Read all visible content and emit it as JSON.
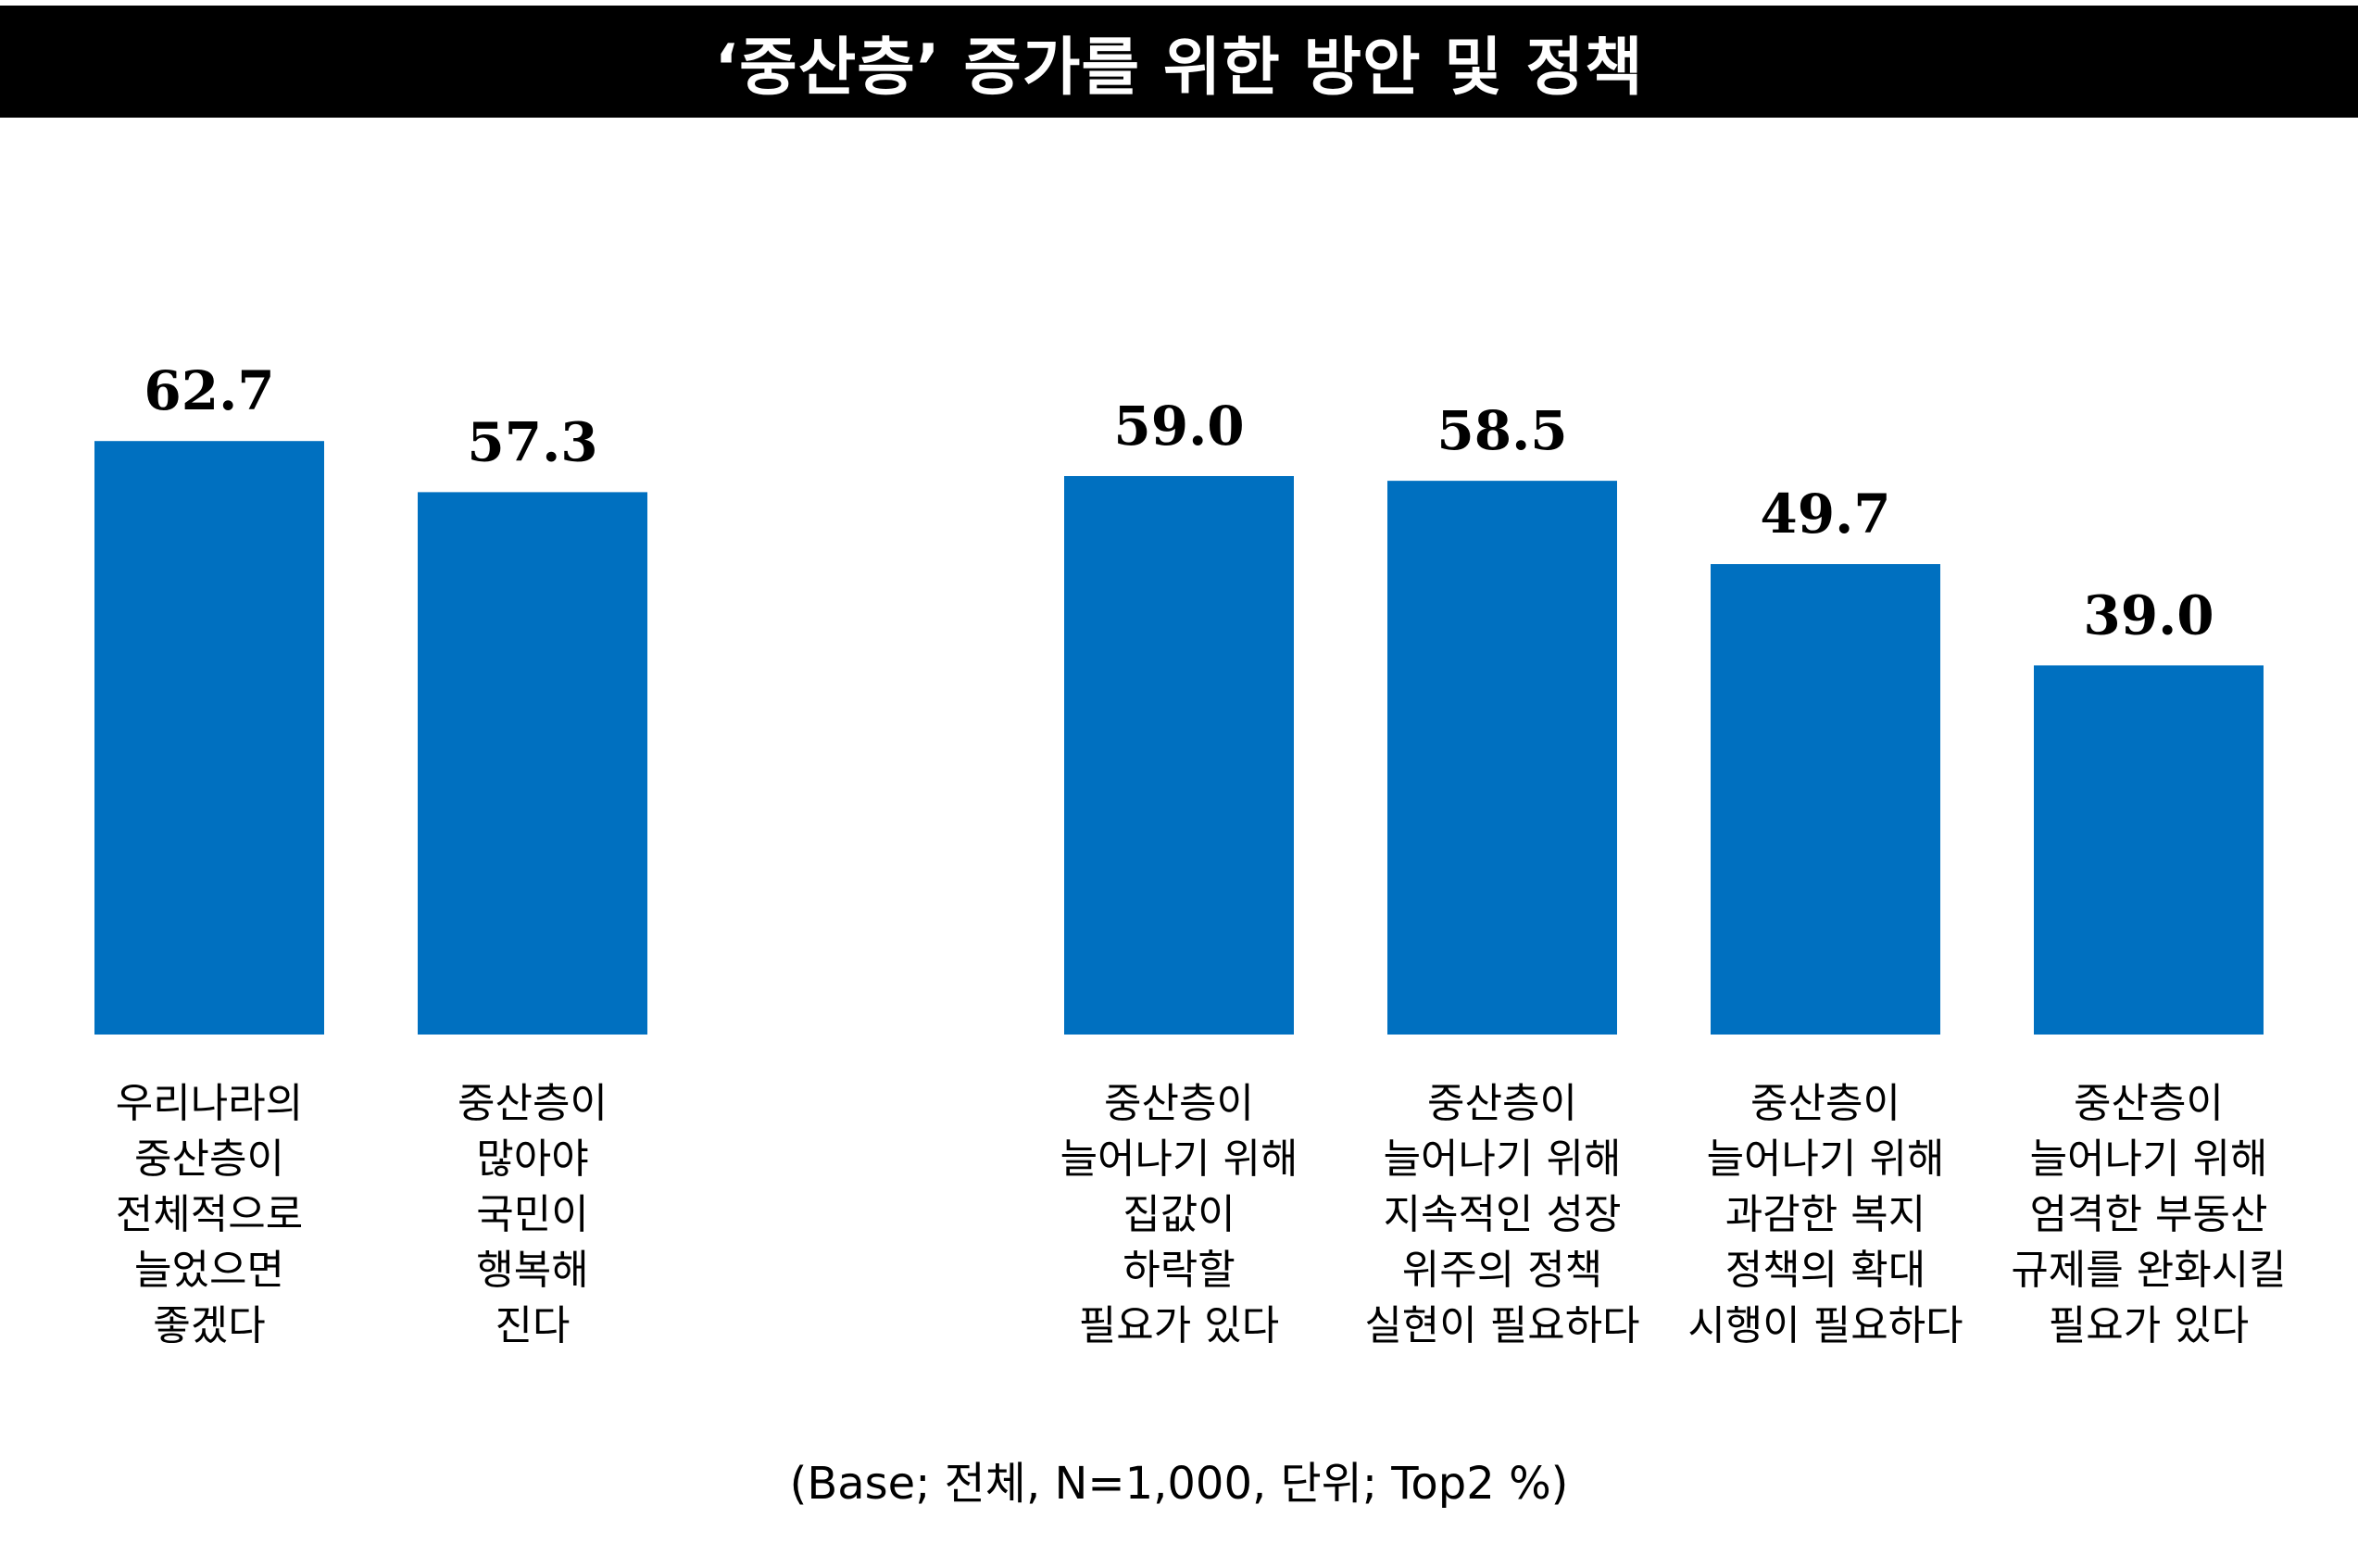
{
  "colors": {
    "bar": "#0070C0",
    "title_background": "#000000",
    "title_text": "#FFFFFF",
    "text": "#000000"
  },
  "chart_data": {
    "type": "bar",
    "title": "‘중산층’ 증가를 위한 방안 및 정책",
    "note": "(Base; 전체, N=1,000, 단위; Top2 %)",
    "categories": [
      [
        "우리나라의",
        "중산층이",
        "전체적으로",
        "늘었으면",
        "좋겠다"
      ],
      [
        "중산층이",
        "많아야",
        "국민이",
        "행복해",
        "진다"
      ],
      [
        "중산층이",
        "늘어나기 위해",
        "집값이",
        "하락할",
        "필요가 있다"
      ],
      [
        "중산층이",
        "늘어나기 위해",
        "지속적인 성장",
        "위주의 정책",
        "실현이 필요하다"
      ],
      [
        "중산층이",
        "늘어나기 위해",
        "과감한 복지",
        "정책의 확대",
        "시행이 필요하다"
      ],
      [
        "중산층이",
        "늘어나기 위해",
        "엄격한 부동산",
        "규제를 완화시킬",
        "필요가 있다"
      ]
    ],
    "values": [
      62.7,
      57.3,
      59.0,
      58.5,
      49.7,
      39.0
    ],
    "data_labels": [
      "62.7",
      "57.3",
      "59.0",
      "58.5",
      "49.7",
      "39.0"
    ],
    "xlabel": "",
    "ylabel": "",
    "legend": "none",
    "grid": false
  }
}
